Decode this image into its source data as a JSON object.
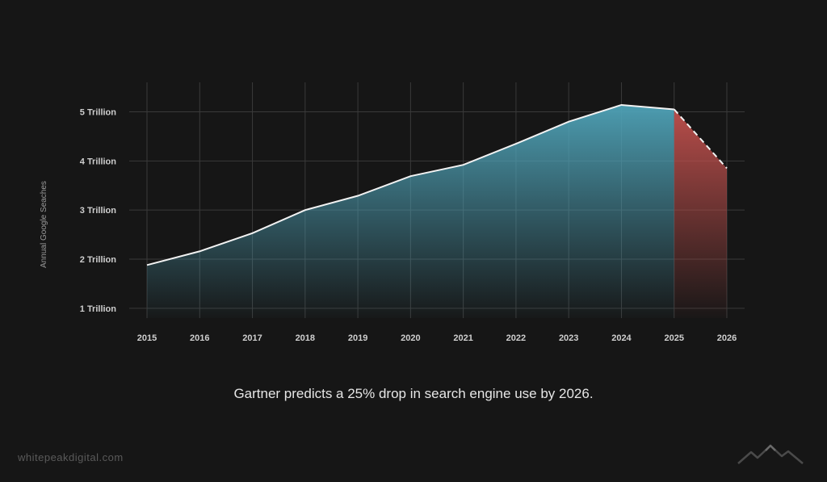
{
  "caption": "Gartner predicts a 25% drop in search engine use by 2026.",
  "brand": "whitepeakdigital.com",
  "logo_icon": "mountain-peaks-icon",
  "colors": {
    "background": "#161616",
    "actual_fill": "#4fa3b8",
    "forecast_fill": "#c0504d",
    "line": "#f2f2f2"
  },
  "chart_data": {
    "type": "area",
    "ylabel": "Annual Google Seaches",
    "xlabel": "",
    "x": [
      "2015",
      "2016",
      "2017",
      "2018",
      "2019",
      "2020",
      "2021",
      "2022",
      "2023",
      "2024",
      "2025",
      "2026"
    ],
    "ytick_values": [
      1,
      2,
      3,
      4,
      5
    ],
    "ytick_labels": [
      "1 Trillion",
      "2 Trillion",
      "3 Trillion",
      "4 Trillion",
      "5 Trillion"
    ],
    "ylim": [
      0.8,
      5.6
    ],
    "grid": true,
    "series": [
      {
        "values": [
          1.88,
          2.16,
          2.53,
          3.0,
          3.29,
          3.69,
          3.92,
          4.35,
          4.8,
          5.14,
          5.05,
          3.85
        ],
        "forecast_from_index": 10
      }
    ]
  }
}
